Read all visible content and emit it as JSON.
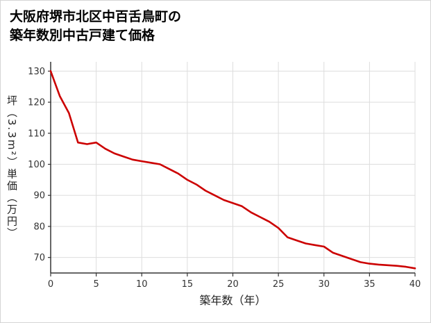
{
  "header": {
    "title_line1": "大阪府堺市北区中百舌鳥町の",
    "title_line2": "築年数別中古戸建て価格"
  },
  "chart_data": {
    "type": "line",
    "title": "大阪府堺市北区中百舌鳥町の築年数別中古戸建て価格",
    "xlabel": "築年数（年）",
    "ylabel": "坪（3.3m²）単価（万円）",
    "x": [
      0,
      1,
      2,
      3,
      4,
      5,
      6,
      7,
      8,
      9,
      10,
      11,
      12,
      13,
      14,
      15,
      16,
      17,
      18,
      19,
      20,
      21,
      22,
      23,
      24,
      25,
      26,
      27,
      28,
      29,
      30,
      31,
      32,
      33,
      34,
      35,
      36,
      37,
      38,
      39,
      40
    ],
    "values": [
      130,
      122,
      116.5,
      107,
      106.5,
      107,
      105,
      103.5,
      102.5,
      101.5,
      101,
      100.5,
      100,
      98.5,
      97,
      95,
      93.5,
      91.5,
      90,
      88.5,
      87.5,
      86.5,
      84.5,
      83,
      81.5,
      79.5,
      76.5,
      75.5,
      74.5,
      74,
      73.5,
      71.5,
      70.5,
      69.5,
      68.5,
      68,
      67.7,
      67.5,
      67.3,
      67,
      66.5
    ],
    "xlim": [
      0,
      40
    ],
    "ylim": [
      65,
      133
    ],
    "xticks": [
      0,
      5,
      10,
      15,
      20,
      25,
      30,
      35,
      40
    ],
    "yticks": [
      70,
      80,
      90,
      100,
      110,
      120,
      130
    ],
    "grid": true,
    "legend": "none",
    "colors": {
      "line": "#cc0000",
      "grid": "#dddddd",
      "axis": "#333333",
      "tick_label": "#333333",
      "background": "#ffffff",
      "border": "#d4d4d4"
    }
  }
}
